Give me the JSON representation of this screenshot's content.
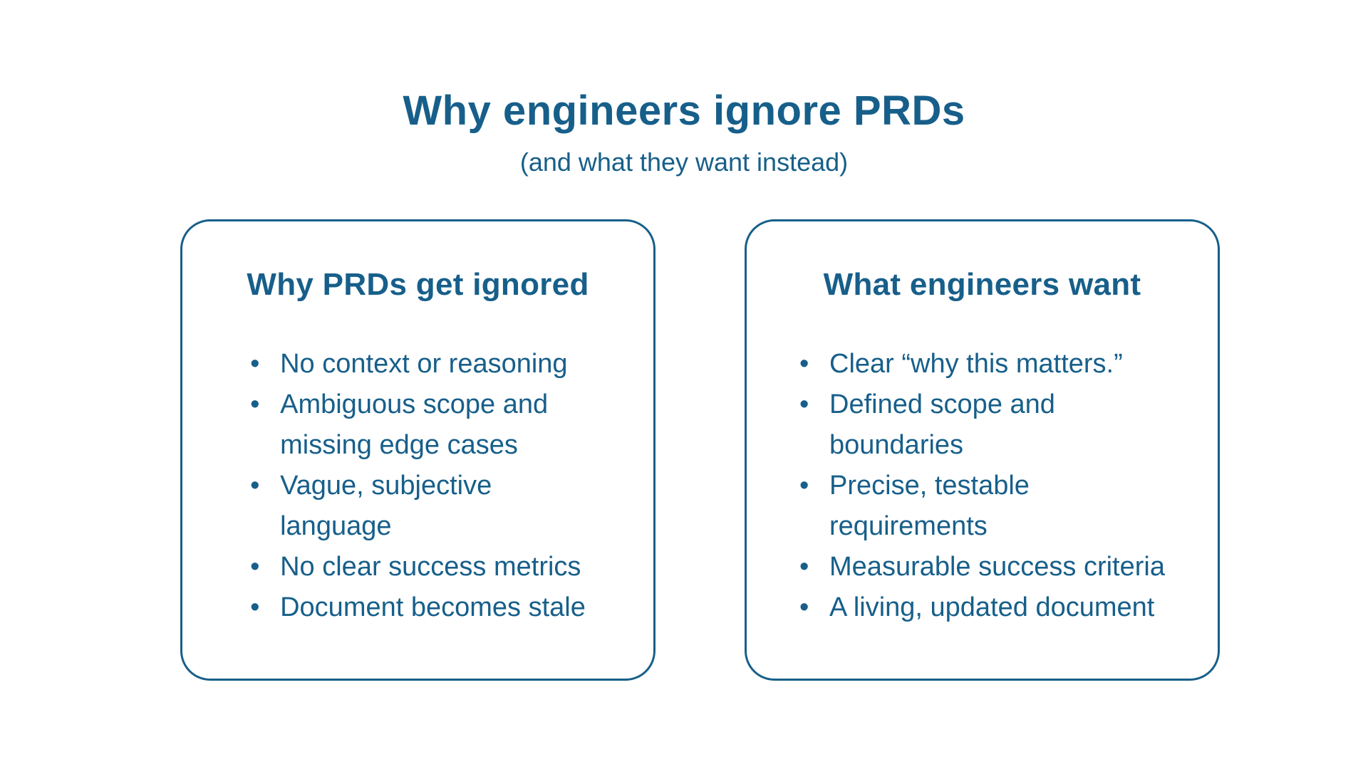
{
  "header": {
    "title": "Why engineers ignore PRDs",
    "subtitle": "(and what they want instead)"
  },
  "glyphs": {
    "bullet": "•"
  },
  "colors": {
    "accent": "#175F8A",
    "background": "#FFFFFF"
  },
  "cards": [
    {
      "heading": "Why PRDs get ignored",
      "bullets": [
        "No context or reasoning",
        "Ambiguous scope and\nmissing edge cases",
        "Vague, subjective\nlanguage",
        "No clear success metrics",
        "Document becomes stale"
      ]
    },
    {
      "heading": "What engineers want",
      "bullets": [
        "Clear “why this matters.”",
        "Defined scope and\nboundaries",
        "Precise, testable\nrequirements",
        "Measurable success criteria",
        "A living, updated document"
      ]
    }
  ]
}
